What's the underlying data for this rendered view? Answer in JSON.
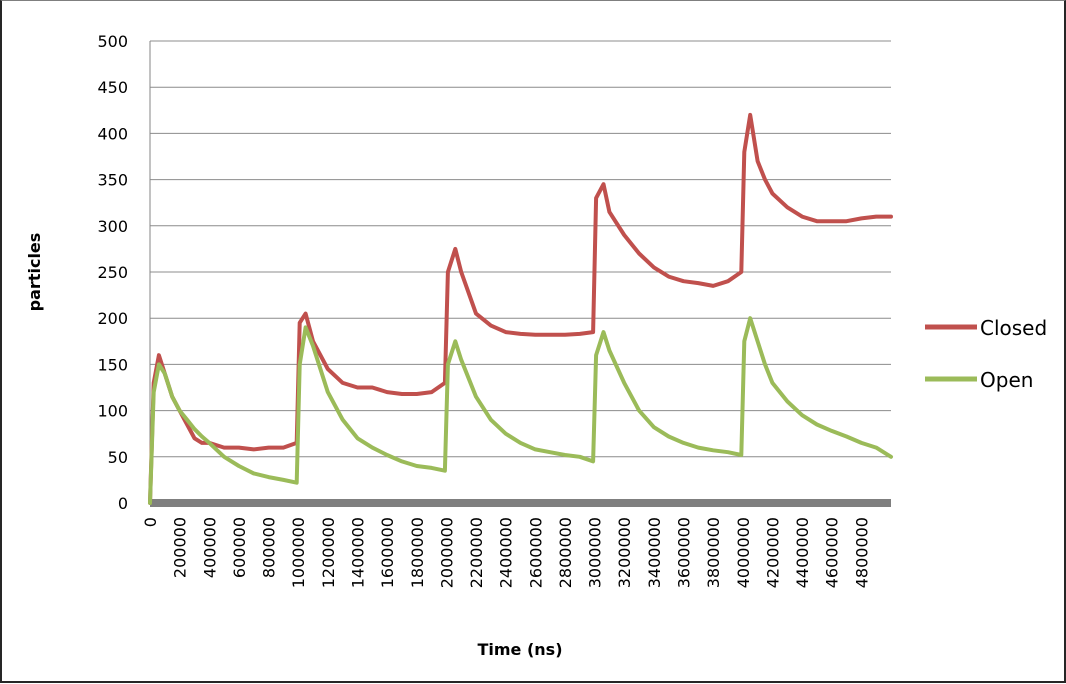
{
  "chart_data": {
    "type": "line",
    "title": "",
    "xlabel": "Time (ns)",
    "ylabel": "particles",
    "xlim": [
      0,
      5000000
    ],
    "ylim": [
      0,
      500
    ],
    "yticks": [
      0,
      50,
      100,
      150,
      200,
      250,
      300,
      350,
      400,
      450,
      500
    ],
    "xticks": [
      0,
      200000,
      400000,
      600000,
      800000,
      1000000,
      1200000,
      1400000,
      1600000,
      1800000,
      2000000,
      2200000,
      2400000,
      2600000,
      2800000,
      3000000,
      3200000,
      3400000,
      3600000,
      3800000,
      4000000,
      4200000,
      4400000,
      4600000,
      4800000
    ],
    "grid": "horizontal",
    "legend_position": "right",
    "series": [
      {
        "name": "Closed",
        "color": "#c0504d",
        "x": [
          0,
          25000,
          60000,
          100000,
          150000,
          200000,
          250000,
          300000,
          350000,
          400000,
          500000,
          600000,
          700000,
          800000,
          900000,
          990000,
          1010000,
          1050000,
          1100000,
          1200000,
          1300000,
          1400000,
          1500000,
          1600000,
          1700000,
          1800000,
          1900000,
          1990000,
          2010000,
          2060000,
          2100000,
          2200000,
          2300000,
          2400000,
          2500000,
          2600000,
          2700000,
          2800000,
          2900000,
          2990000,
          3010000,
          3060000,
          3100000,
          3200000,
          3300000,
          3400000,
          3500000,
          3600000,
          3700000,
          3800000,
          3900000,
          3990000,
          4010000,
          4050000,
          4100000,
          4150000,
          4200000,
          4300000,
          4400000,
          4500000,
          4600000,
          4700000,
          4800000,
          4900000,
          5000000
        ],
        "y": [
          0,
          130,
          160,
          140,
          115,
          100,
          85,
          70,
          65,
          65,
          60,
          60,
          58,
          60,
          60,
          65,
          195,
          205,
          175,
          145,
          130,
          125,
          125,
          120,
          118,
          118,
          120,
          130,
          250,
          275,
          250,
          205,
          192,
          185,
          183,
          182,
          182,
          182,
          183,
          185,
          330,
          345,
          315,
          290,
          270,
          255,
          245,
          240,
          238,
          235,
          240,
          250,
          380,
          420,
          370,
          350,
          335,
          320,
          310,
          305,
          305,
          305,
          308,
          310,
          310
        ]
      },
      {
        "name": "Open",
        "color": "#9bbb59",
        "x": [
          0,
          25000,
          60000,
          100000,
          150000,
          200000,
          250000,
          300000,
          350000,
          400000,
          500000,
          600000,
          700000,
          800000,
          900000,
          990000,
          1010000,
          1050000,
          1100000,
          1200000,
          1300000,
          1400000,
          1500000,
          1600000,
          1700000,
          1800000,
          1900000,
          1990000,
          2010000,
          2060000,
          2100000,
          2200000,
          2300000,
          2400000,
          2500000,
          2600000,
          2700000,
          2800000,
          2900000,
          2990000,
          3010000,
          3060000,
          3100000,
          3200000,
          3300000,
          3400000,
          3500000,
          3600000,
          3700000,
          3800000,
          3900000,
          3990000,
          4010000,
          4050000,
          4100000,
          4150000,
          4200000,
          4300000,
          4400000,
          4500000,
          4600000,
          4700000,
          4800000,
          4900000,
          5000000
        ],
        "y": [
          0,
          120,
          150,
          140,
          115,
          100,
          90,
          80,
          72,
          65,
          50,
          40,
          32,
          28,
          25,
          22,
          150,
          190,
          170,
          120,
          90,
          70,
          60,
          52,
          45,
          40,
          38,
          35,
          150,
          175,
          155,
          115,
          90,
          75,
          65,
          58,
          55,
          52,
          50,
          45,
          160,
          185,
          165,
          130,
          100,
          82,
          72,
          65,
          60,
          57,
          55,
          52,
          175,
          200,
          175,
          150,
          130,
          110,
          95,
          85,
          78,
          72,
          65,
          60,
          50
        ]
      }
    ]
  }
}
